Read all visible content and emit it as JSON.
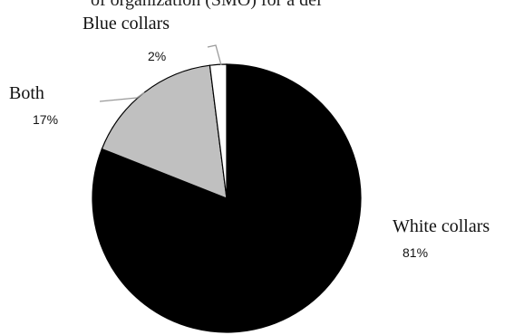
{
  "caption_fragment": "of organization (SMO) for a del",
  "chart_data": {
    "type": "pie",
    "title": "",
    "start_angle_deg": 0,
    "direction": "clockwise",
    "slices": [
      {
        "label": "White collars",
        "value": 81,
        "value_label": "81%",
        "color": "#000000"
      },
      {
        "label": "Both",
        "value": 17,
        "value_label": "17%",
        "color": "#c0c0c0"
      },
      {
        "label": "Blue collars",
        "value": 2,
        "value_label": "2%",
        "color": "#ffffff"
      }
    ],
    "slice_stroke": "#000000",
    "leader_color": "#9a9a9a"
  }
}
